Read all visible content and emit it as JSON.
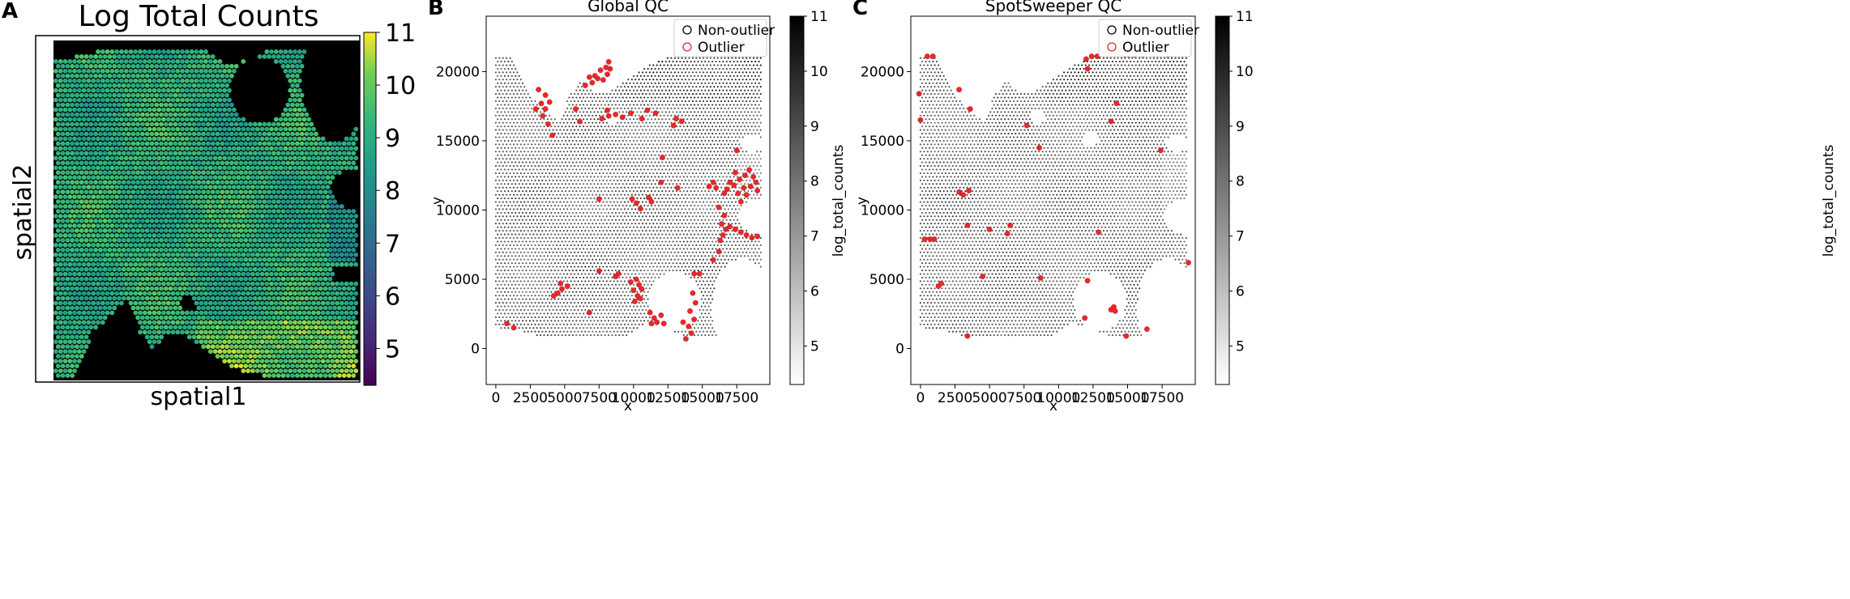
{
  "chart_data": [
    {
      "type": "scatter",
      "panel_label": "A",
      "title": "Log Total Counts",
      "xlabel": "spatial1",
      "ylabel": "spatial2",
      "colormap": "viridis",
      "colorbar": {
        "min": 4.3,
        "max": 11.0,
        "ticks": [
          "5",
          "6",
          "7",
          "8",
          "9",
          "10",
          "11"
        ]
      },
      "background": "#000000",
      "grid": false
    },
    {
      "type": "scatter",
      "panel_label": "B",
      "title": "Global QC",
      "xlabel": "x",
      "ylabel": "y",
      "xlim": [
        -700,
        19900
      ],
      "ylim": [
        24000,
        -2600
      ],
      "xticks": [
        "0",
        "2500",
        "5000",
        "7500",
        "10000",
        "12500",
        "15000",
        "17500"
      ],
      "yticks": [
        "0",
        "5000",
        "10000",
        "15000",
        "20000"
      ],
      "colorbar": {
        "label": "log_total_counts",
        "min": 4.3,
        "max": 11.0,
        "ticks": [
          "5",
          "6",
          "7",
          "8",
          "9",
          "10",
          "11"
        ]
      },
      "legend": {
        "position": "top-right",
        "entries": [
          {
            "label": "Non-outlier",
            "color": "#000000"
          },
          {
            "label": "Outlier",
            "color": "#e8282b"
          }
        ]
      },
      "outliers": [
        [
          1300,
          1500
        ],
        [
          800,
          1800
        ],
        [
          4200,
          3800
        ],
        [
          4500,
          4000
        ],
        [
          4800,
          4300
        ],
        [
          5200,
          4500
        ],
        [
          4700,
          4700
        ],
        [
          6800,
          2600
        ],
        [
          7500,
          5600
        ],
        [
          8700,
          5200
        ],
        [
          8900,
          5400
        ],
        [
          10100,
          3400
        ],
        [
          10300,
          3800
        ],
        [
          10000,
          4200
        ],
        [
          10400,
          4600
        ],
        [
          9800,
          4800
        ],
        [
          10600,
          4300
        ],
        [
          10200,
          5000
        ],
        [
          10500,
          3600
        ],
        [
          11300,
          1800
        ],
        [
          11700,
          1900
        ],
        [
          12200,
          1800
        ],
        [
          11500,
          2200
        ],
        [
          11200,
          2600
        ],
        [
          12000,
          2400
        ],
        [
          13800,
          700
        ],
        [
          14200,
          1100
        ],
        [
          14000,
          1600
        ],
        [
          14400,
          2100
        ],
        [
          13600,
          1900
        ],
        [
          14100,
          2700
        ],
        [
          14500,
          3300
        ],
        [
          14300,
          4000
        ],
        [
          14400,
          5400
        ],
        [
          14800,
          5400
        ],
        [
          15800,
          6400
        ],
        [
          16200,
          7000
        ],
        [
          16300,
          7800
        ],
        [
          16500,
          8200
        ],
        [
          16700,
          8600
        ],
        [
          17000,
          8800
        ],
        [
          17400,
          8600
        ],
        [
          17800,
          8400
        ],
        [
          18200,
          8200
        ],
        [
          18600,
          8000
        ],
        [
          19000,
          8100
        ],
        [
          16400,
          9000
        ],
        [
          16600,
          9600
        ],
        [
          16200,
          10200
        ],
        [
          17800,
          10600
        ],
        [
          18200,
          11100
        ],
        [
          17600,
          11200
        ],
        [
          18000,
          11600
        ],
        [
          18500,
          11700
        ],
        [
          18900,
          12000
        ],
        [
          17300,
          11800
        ],
        [
          17700,
          12200
        ],
        [
          18100,
          12500
        ],
        [
          18700,
          12400
        ],
        [
          17000,
          12000
        ],
        [
          16800,
          11500
        ],
        [
          19000,
          11400
        ],
        [
          16600,
          11200
        ],
        [
          17400,
          12700
        ],
        [
          18400,
          12900
        ],
        [
          15500,
          11700
        ],
        [
          15800,
          12000
        ],
        [
          16000,
          11600
        ],
        [
          9900,
          10800
        ],
        [
          10200,
          10500
        ],
        [
          10500,
          10100
        ],
        [
          12000,
          12000
        ],
        [
          12100,
          13800
        ],
        [
          13200,
          11600
        ],
        [
          7500,
          10800
        ],
        [
          11100,
          10900
        ],
        [
          11300,
          10600
        ],
        [
          4100,
          15400
        ],
        [
          3800,
          16200
        ],
        [
          3400,
          16800
        ],
        [
          3600,
          17300
        ],
        [
          3300,
          17700
        ],
        [
          3900,
          17800
        ],
        [
          3600,
          18300
        ],
        [
          3100,
          18700
        ],
        [
          2900,
          17300
        ],
        [
          7700,
          16600
        ],
        [
          8200,
          16800
        ],
        [
          8700,
          16900
        ],
        [
          9200,
          16700
        ],
        [
          9800,
          17000
        ],
        [
          8100,
          17200
        ],
        [
          10600,
          16600
        ],
        [
          11000,
          17200
        ],
        [
          11600,
          17000
        ],
        [
          12900,
          16100
        ],
        [
          13500,
          16400
        ],
        [
          13100,
          16600
        ],
        [
          6100,
          16400
        ],
        [
          5800,
          17300
        ],
        [
          6500,
          19000
        ],
        [
          7000,
          19200
        ],
        [
          7400,
          19500
        ],
        [
          7800,
          19400
        ],
        [
          8100,
          19800
        ],
        [
          7600,
          20100
        ],
        [
          8000,
          20300
        ],
        [
          8200,
          20700
        ],
        [
          7200,
          19700
        ],
        [
          6800,
          19600
        ],
        [
          8300,
          20200
        ],
        [
          17500,
          14300
        ]
      ]
    },
    {
      "type": "scatter",
      "panel_label": "C",
      "title": "SpotSweeper QC",
      "xlabel": "x",
      "ylabel": "y",
      "xlim": [
        -700,
        19900
      ],
      "ylim": [
        24000,
        -2600
      ],
      "xticks": [
        "0",
        "2500",
        "5000",
        "7500",
        "10000",
        "12500",
        "15000",
        "17500"
      ],
      "yticks": [
        "0",
        "5000",
        "10000",
        "15000",
        "20000"
      ],
      "colorbar": {
        "label": "log_total_counts",
        "min": 4.3,
        "max": 11.0,
        "ticks": [
          "5",
          "6",
          "7",
          "8",
          "9",
          "10",
          "11"
        ]
      },
      "legend": {
        "position": "top-right",
        "entries": [
          {
            "label": "Non-outlier",
            "color": "#000000"
          },
          {
            "label": "Outlier",
            "color": "#e8282b"
          }
        ]
      },
      "outliers": [
        [
          3400,
          900
        ],
        [
          14900,
          900
        ],
        [
          16400,
          1400
        ],
        [
          11900,
          2200
        ],
        [
          13800,
          2800
        ],
        [
          14000,
          3000
        ],
        [
          14100,
          2700
        ],
        [
          1300,
          4500
        ],
        [
          1500,
          4700
        ],
        [
          4500,
          5200
        ],
        [
          8700,
          5100
        ],
        [
          12100,
          4900
        ],
        [
          19400,
          6200
        ],
        [
          300,
          7900
        ],
        [
          700,
          7900
        ],
        [
          1000,
          7900
        ],
        [
          3400,
          8900
        ],
        [
          5000,
          8600
        ],
        [
          6300,
          8300
        ],
        [
          6500,
          8900
        ],
        [
          12900,
          8400
        ],
        [
          2800,
          11300
        ],
        [
          3100,
          11100
        ],
        [
          3500,
          11400
        ],
        [
          8600,
          14500
        ],
        [
          17400,
          14300
        ],
        [
          7700,
          16100
        ],
        [
          13800,
          16400
        ],
        [
          0,
          16500
        ],
        [
          3600,
          17300
        ],
        [
          14200,
          17700
        ],
        [
          -100,
          18400
        ],
        [
          2800,
          18700
        ],
        [
          12100,
          20200
        ],
        [
          500,
          21100
        ],
        [
          900,
          21100
        ],
        [
          12000,
          20900
        ],
        [
          12400,
          21100
        ],
        [
          12800,
          21100
        ],
        [
          14800,
          21200
        ],
        [
          15100,
          21200
        ],
        [
          15500,
          21200
        ],
        [
          16100,
          21200
        ],
        [
          17900,
          21200
        ]
      ]
    }
  ]
}
